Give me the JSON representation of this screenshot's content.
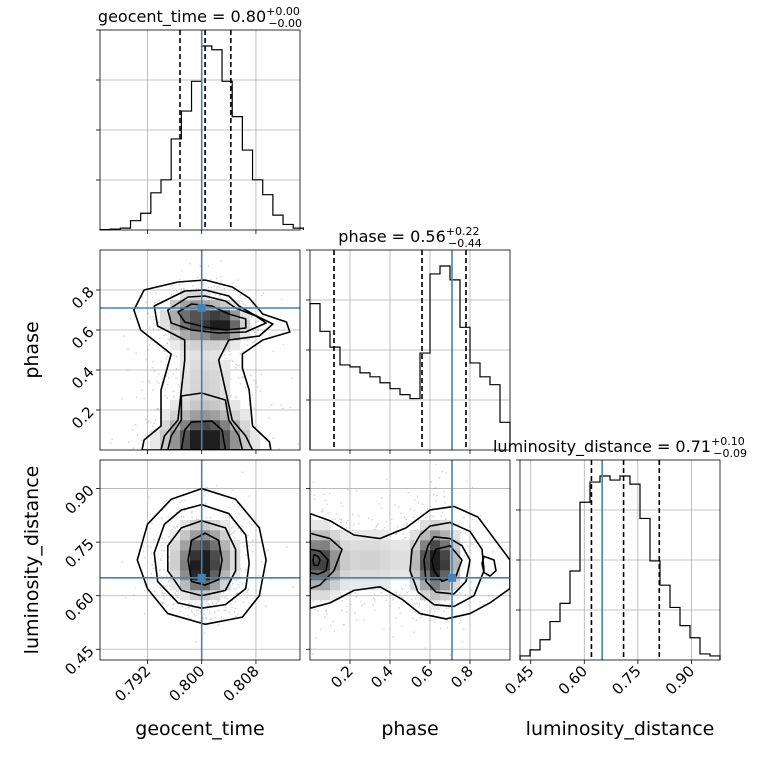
{
  "chart_data": {
    "type": "corner",
    "grid": true,
    "truth_color": "#4682b4",
    "hist_color": "#000000",
    "parameters": [
      {
        "key": "geocent_time",
        "label": "geocent_time",
        "title_text": "geocent_time = 0.80",
        "err_plus": "+0.00",
        "err_minus": "−0.00",
        "range": [
          0.785,
          0.8145
        ],
        "truth": 0.8,
        "quantiles": [
          0.7968,
          0.8005,
          0.8043
        ],
        "ticks": [
          0.792,
          0.8,
          0.808
        ],
        "tick_labels": [
          "0.792",
          "0.800",
          "0.808"
        ],
        "hist_bins": [
          0.785,
          0.7865,
          0.788,
          0.7895,
          0.791,
          0.7925,
          0.794,
          0.7955,
          0.797,
          0.7985,
          0.8,
          0.8015,
          0.803,
          0.8045,
          0.806,
          0.8075,
          0.809,
          0.8105,
          0.812,
          0.8135,
          0.815
        ],
        "hist_counts": [
          0.002,
          0.005,
          0.01,
          0.05,
          0.09,
          0.2,
          0.27,
          0.49,
          0.64,
          0.8,
          0.99,
          0.97,
          0.8,
          0.61,
          0.43,
          0.27,
          0.19,
          0.08,
          0.03,
          0.01
        ]
      },
      {
        "key": "phase",
        "label": "phase",
        "title_text": "phase = 0.56",
        "err_plus": "+0.22",
        "err_minus": "−0.44",
        "range": [
          0.0,
          1.0
        ],
        "truth": 0.71,
        "quantiles": [
          0.12,
          0.56,
          0.78
        ],
        "ticks": [
          0.2,
          0.4,
          0.6,
          0.8
        ],
        "tick_labels": [
          "0.2",
          "0.4",
          "0.6",
          "0.8"
        ],
        "y_ticks": [
          0.2,
          0.4,
          0.6,
          0.8
        ],
        "y_tick_labels": [
          "0.2",
          "0.4",
          "0.6",
          "0.8"
        ],
        "hist_bins": [
          0.0,
          0.05,
          0.1,
          0.15,
          0.2,
          0.25,
          0.3,
          0.35,
          0.4,
          0.45,
          0.5,
          0.55,
          0.6,
          0.65,
          0.7,
          0.75,
          0.8,
          0.85,
          0.9,
          0.95,
          1.0
        ],
        "hist_counts": [
          0.74,
          0.6,
          0.52,
          0.43,
          0.42,
          0.39,
          0.37,
          0.34,
          0.31,
          0.28,
          0.26,
          0.49,
          0.89,
          0.93,
          0.86,
          0.62,
          0.44,
          0.37,
          0.33,
          0.14
        ]
      },
      {
        "key": "luminosity_distance",
        "label": "luminosity_distance",
        "title_text": "luminosity_distance = 0.71",
        "err_plus": "+0.10",
        "err_minus": "−0.09",
        "range": [
          0.42,
          0.98
        ],
        "truth": 0.65,
        "quantiles": [
          0.62,
          0.71,
          0.81
        ],
        "ticks": [
          0.45,
          0.6,
          0.75,
          0.9
        ],
        "tick_labels": [
          "0.45",
          "0.60",
          "0.75",
          "0.90"
        ],
        "y_ticks": [
          0.45,
          0.6,
          0.75,
          0.9
        ],
        "y_tick_labels": [
          "0.45",
          "0.60",
          "0.75",
          "0.90"
        ],
        "hist_bins": [
          0.42,
          0.448,
          0.476,
          0.504,
          0.532,
          0.56,
          0.588,
          0.616,
          0.644,
          0.672,
          0.7,
          0.728,
          0.756,
          0.784,
          0.812,
          0.84,
          0.868,
          0.896,
          0.924,
          0.952,
          0.98
        ],
        "hist_counts": [
          0.02,
          0.05,
          0.1,
          0.19,
          0.28,
          0.44,
          0.78,
          0.88,
          0.91,
          0.89,
          0.91,
          0.87,
          0.7,
          0.49,
          0.37,
          0.26,
          0.17,
          0.11,
          0.03,
          0.02
        ]
      }
    ],
    "pairs": [
      {
        "x": "geocent_time",
        "y": "phase",
        "density": [
          {
            "x": 0.7987,
            "y": 0.655,
            "sx": 0.0023,
            "sy": 0.07,
            "w": 0.55
          },
          {
            "x": 0.8031,
            "y": 0.63,
            "sx": 0.0018,
            "sy": 0.05,
            "w": 0.8
          },
          {
            "x": 0.8005,
            "y": 0.045,
            "sx": 0.0034,
            "sy": 0.09,
            "w": 0.85
          },
          {
            "x": 0.8005,
            "y": 0.35,
            "sx": 0.003,
            "sy": 0.12,
            "w": 0.15
          }
        ],
        "contours": [
          [
            [
              0.7965,
              0.84
            ],
            [
              0.8005,
              0.85
            ],
            [
              0.8045,
              0.815
            ],
            [
              0.807,
              0.76
            ],
            [
              0.809,
              0.68
            ],
            [
              0.8125,
              0.64
            ],
            [
              0.813,
              0.59
            ],
            [
              0.809,
              0.55
            ],
            [
              0.806,
              0.48
            ],
            [
              0.806,
              0.41
            ],
            [
              0.807,
              0.3
            ],
            [
              0.8075,
              0.12
            ],
            [
              0.81,
              0.04
            ],
            [
              0.8102,
              0.0
            ],
            [
              0.7912,
              0.0
            ],
            [
              0.7915,
              0.05
            ],
            [
              0.794,
              0.12
            ],
            [
              0.794,
              0.3
            ],
            [
              0.795,
              0.42
            ],
            [
              0.7955,
              0.48
            ],
            [
              0.791,
              0.6
            ],
            [
              0.79,
              0.7
            ],
            [
              0.7915,
              0.8
            ]
          ],
          [
            [
              0.7975,
              0.795
            ],
            [
              0.8005,
              0.8
            ],
            [
              0.804,
              0.77
            ],
            [
              0.8055,
              0.72
            ],
            [
              0.8075,
              0.68
            ],
            [
              0.8105,
              0.63
            ],
            [
              0.8085,
              0.57
            ],
            [
              0.804,
              0.55
            ],
            [
              0.8025,
              0.45
            ],
            [
              0.8035,
              0.3
            ],
            [
              0.8045,
              0.15
            ],
            [
              0.8065,
              0.07
            ],
            [
              0.8075,
              0.0
            ],
            [
              0.794,
              0.0
            ],
            [
              0.7945,
              0.07
            ],
            [
              0.7965,
              0.15
            ],
            [
              0.797,
              0.3
            ],
            [
              0.7975,
              0.45
            ],
            [
              0.7975,
              0.55
            ],
            [
              0.7935,
              0.62
            ],
            [
              0.793,
              0.72
            ]
          ],
          [
            [
              0.798,
              0.765
            ],
            [
              0.8005,
              0.77
            ],
            [
              0.8035,
              0.745
            ],
            [
              0.805,
              0.71
            ],
            [
              0.808,
              0.67
            ],
            [
              0.8095,
              0.635
            ],
            [
              0.8065,
              0.59
            ],
            [
              0.8025,
              0.585
            ],
            [
              0.7985,
              0.6
            ],
            [
              0.7955,
              0.635
            ],
            [
              0.795,
              0.7
            ]
          ],
          [
            [
              0.7985,
              0.73
            ],
            [
              0.8015,
              0.72
            ],
            [
              0.804,
              0.68
            ],
            [
              0.8065,
              0.655
            ],
            [
              0.8065,
              0.61
            ],
            [
              0.8035,
              0.6
            ],
            [
              0.8005,
              0.615
            ],
            [
              0.7975,
              0.64
            ],
            [
              0.7965,
              0.69
            ]
          ],
          [
            [
              0.797,
              0.27
            ],
            [
              0.8,
              0.285
            ],
            [
              0.8035,
              0.25
            ],
            [
              0.804,
              0.15
            ],
            [
              0.8055,
              0.07
            ],
            [
              0.806,
              0.0
            ],
            [
              0.795,
              0.0
            ],
            [
              0.7955,
              0.07
            ],
            [
              0.797,
              0.15
            ]
          ],
          [
            [
              0.7985,
              0.14
            ],
            [
              0.8015,
              0.145
            ],
            [
              0.803,
              0.1
            ],
            [
              0.8035,
              0.0
            ],
            [
              0.797,
              0.0
            ],
            [
              0.7975,
              0.1
            ]
          ]
        ]
      },
      {
        "x": "geocent_time",
        "y": "luminosity_distance",
        "density": [
          {
            "x": 0.8003,
            "y": 0.705,
            "sx": 0.0024,
            "sy": 0.055,
            "w": 1.0
          },
          {
            "x": 0.7998,
            "y": 0.655,
            "sx": 0.0016,
            "sy": 0.03,
            "w": 0.4
          }
        ],
        "contours": [
          [
            [
              0.8,
              0.9
            ],
            [
              0.805,
              0.87
            ],
            [
              0.8085,
              0.79
            ],
            [
              0.8095,
              0.7
            ],
            [
              0.8085,
              0.6
            ],
            [
              0.806,
              0.54
            ],
            [
              0.8005,
              0.52
            ],
            [
              0.795,
              0.55
            ],
            [
              0.792,
              0.62
            ],
            [
              0.7905,
              0.7
            ],
            [
              0.792,
              0.8
            ],
            [
              0.7955,
              0.87
            ]
          ],
          [
            [
              0.8,
              0.855
            ],
            [
              0.804,
              0.83
            ],
            [
              0.8065,
              0.77
            ],
            [
              0.807,
              0.69
            ],
            [
              0.8065,
              0.62
            ],
            [
              0.8035,
              0.575
            ],
            [
              0.8,
              0.565
            ],
            [
              0.7965,
              0.58
            ],
            [
              0.7935,
              0.64
            ],
            [
              0.793,
              0.72
            ],
            [
              0.7945,
              0.8
            ],
            [
              0.797,
              0.84
            ]
          ],
          [
            [
              0.8,
              0.81
            ],
            [
              0.8035,
              0.79
            ],
            [
              0.805,
              0.73
            ],
            [
              0.805,
              0.67
            ],
            [
              0.8035,
              0.615
            ],
            [
              0.8,
              0.6
            ],
            [
              0.797,
              0.615
            ],
            [
              0.795,
              0.67
            ],
            [
              0.795,
              0.74
            ],
            [
              0.797,
              0.79
            ]
          ],
          [
            [
              0.8005,
              0.775
            ],
            [
              0.8025,
              0.755
            ],
            [
              0.803,
              0.7
            ],
            [
              0.8025,
              0.645
            ],
            [
              0.8005,
              0.63
            ],
            [
              0.7985,
              0.64
            ],
            [
              0.798,
              0.7
            ],
            [
              0.7985,
              0.755
            ]
          ]
        ]
      },
      {
        "x": "phase",
        "y": "luminosity_distance",
        "density": [
          {
            "x": 0.63,
            "y": 0.695,
            "sx": 0.06,
            "sy": 0.055,
            "w": 1.0
          },
          {
            "x": 0.05,
            "y": 0.695,
            "sx": 0.06,
            "sy": 0.05,
            "w": 0.75
          },
          {
            "x": 0.3,
            "y": 0.7,
            "sx": 0.15,
            "sy": 0.06,
            "w": 0.18
          }
        ],
        "contours": [
          [
            [
              0.0,
              0.83
            ],
            [
              0.1,
              0.81
            ],
            [
              0.22,
              0.77
            ],
            [
              0.35,
              0.76
            ],
            [
              0.48,
              0.79
            ],
            [
              0.6,
              0.84
            ],
            [
              0.72,
              0.85
            ],
            [
              0.84,
              0.82
            ],
            [
              0.92,
              0.76
            ],
            [
              1.0,
              0.7
            ],
            [
              1.0,
              0.62
            ],
            [
              0.9,
              0.58
            ],
            [
              0.8,
              0.55
            ],
            [
              0.68,
              0.535
            ],
            [
              0.55,
              0.55
            ],
            [
              0.46,
              0.59
            ],
            [
              0.35,
              0.625
            ],
            [
              0.22,
              0.615
            ],
            [
              0.1,
              0.58
            ],
            [
              0.0,
              0.565
            ]
          ],
          [
            [
              0.0,
              0.775
            ],
            [
              0.1,
              0.76
            ],
            [
              0.16,
              0.73
            ],
            [
              0.12,
              0.67
            ],
            [
              0.05,
              0.63
            ],
            [
              0.0,
              0.62
            ]
          ],
          [
            [
              0.6,
              0.795
            ],
            [
              0.7,
              0.805
            ],
            [
              0.8,
              0.78
            ],
            [
              0.86,
              0.73
            ],
            [
              0.87,
              0.67
            ],
            [
              0.82,
              0.6
            ],
            [
              0.72,
              0.57
            ],
            [
              0.62,
              0.575
            ],
            [
              0.54,
              0.61
            ],
            [
              0.5,
              0.67
            ],
            [
              0.51,
              0.73
            ],
            [
              0.55,
              0.77
            ]
          ],
          [
            [
              0.62,
              0.765
            ],
            [
              0.7,
              0.76
            ],
            [
              0.76,
              0.74
            ],
            [
              0.8,
              0.7
            ],
            [
              0.78,
              0.64
            ],
            [
              0.72,
              0.605
            ],
            [
              0.63,
              0.61
            ],
            [
              0.58,
              0.64
            ],
            [
              0.57,
              0.7
            ],
            [
              0.59,
              0.74
            ]
          ],
          [
            [
              0.0,
              0.73
            ],
            [
              0.05,
              0.725
            ],
            [
              0.09,
              0.7
            ],
            [
              0.08,
              0.67
            ],
            [
              0.04,
              0.66
            ],
            [
              0.0,
              0.665
            ]
          ],
          [
            [
              0.02,
              0.715
            ],
            [
              0.04,
              0.71
            ],
            [
              0.05,
              0.7
            ],
            [
              0.04,
              0.685
            ],
            [
              0.02,
              0.685
            ],
            [
              0.015,
              0.7
            ]
          ],
          [
            [
              0.63,
              0.73
            ],
            [
              0.7,
              0.74
            ],
            [
              0.76,
              0.7
            ],
            [
              0.73,
              0.655
            ],
            [
              0.66,
              0.64
            ],
            [
              0.62,
              0.67
            ],
            [
              0.61,
              0.7
            ]
          ],
          [
            [
              0.87,
              0.71
            ],
            [
              0.92,
              0.7
            ],
            [
              0.93,
              0.67
            ],
            [
              0.9,
              0.655
            ],
            [
              0.87,
              0.665
            ],
            [
              0.86,
              0.69
            ]
          ]
        ]
      }
    ]
  }
}
